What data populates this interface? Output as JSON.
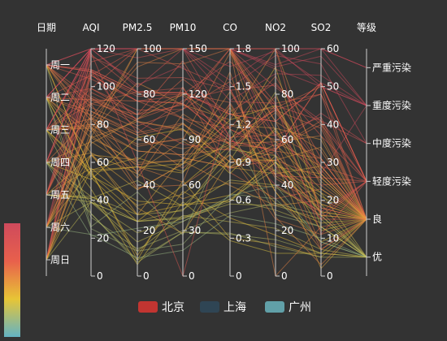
{
  "chart_data": {
    "type": "parallel",
    "background": "#333333",
    "axes": [
      {
        "name": "日期",
        "type": "category",
        "categories": [
          "周一",
          "周二",
          "周三",
          "周四",
          "周五",
          "周六",
          "周日"
        ],
        "inverse": true,
        "ticks": [
          "周一",
          "周二",
          "周三",
          "周四",
          "周五",
          "周六",
          "周日"
        ]
      },
      {
        "name": "AQI",
        "type": "value",
        "min": 0,
        "max": 120,
        "ticks": [
          "0",
          "20",
          "40",
          "60",
          "80",
          "100",
          "120"
        ]
      },
      {
        "name": "PM2.5",
        "type": "value",
        "min": 0,
        "max": 100,
        "ticks": [
          "0",
          "20",
          "40",
          "60",
          "80",
          "100"
        ]
      },
      {
        "name": "PM10",
        "type": "value",
        "min": 0,
        "max": 150,
        "ticks": [
          "0",
          "30",
          "60",
          "90",
          "120",
          "150"
        ]
      },
      {
        "name": "CO",
        "type": "value",
        "min": 0,
        "max": 1.8,
        "ticks": [
          "0",
          "0.3",
          "0.6",
          "0.9",
          "1.2",
          "1.5",
          "1.8"
        ]
      },
      {
        "name": "NO2",
        "type": "value",
        "min": 0,
        "max": 100,
        "ticks": [
          "0",
          "20",
          "40",
          "60",
          "80",
          "100"
        ]
      },
      {
        "name": "SO2",
        "type": "value",
        "min": 0,
        "max": 60,
        "ticks": [
          "0",
          "10",
          "20",
          "30",
          "40",
          "50",
          "60"
        ]
      },
      {
        "name": "等级",
        "type": "category",
        "categories": [
          "优",
          "良",
          "轻度污染",
          "中度污染",
          "重度污染",
          "严重污染"
        ],
        "ticks": [
          "优",
          "良",
          "轻度污染",
          "中度污染",
          "重度污染",
          "严重污染"
        ]
      }
    ],
    "visual_map": {
      "dimension": "AQI",
      "min": 0,
      "max": 150,
      "colors": [
        "#63b3c4",
        "#e7c536",
        "#e8604c",
        "#cf4a5c"
      ]
    },
    "series": [
      {
        "name": "北京",
        "legend_color": "#c23531",
        "rows": [
          [
            0,
            55,
            9,
            56,
            0.46,
            18,
            6,
            1
          ],
          [
            1,
            25,
            11,
            21,
            0.65,
            34,
            9,
            0
          ],
          [
            2,
            56,
            7,
            63,
            0.3,
            14,
            5,
            1
          ],
          [
            3,
            33,
            7,
            29,
            0.33,
            16,
            6,
            0
          ],
          [
            4,
            42,
            24,
            44,
            0.76,
            40,
            16,
            0
          ],
          [
            5,
            82,
            58,
            90,
            1.77,
            68,
            33,
            1
          ],
          [
            6,
            74,
            49,
            77,
            1.46,
            48,
            27,
            1
          ],
          [
            0,
            78,
            55,
            80,
            1.29,
            59,
            29,
            1
          ],
          [
            1,
            267,
            216,
            280,
            4.8,
            108,
            64,
            5
          ],
          [
            2,
            185,
            127,
            216,
            2.52,
            61,
            27,
            4
          ],
          [
            3,
            39,
            19,
            38,
            0.57,
            31,
            15,
            0
          ],
          [
            4,
            41,
            11,
            40,
            0.43,
            21,
            7,
            0
          ],
          [
            5,
            64,
            38,
            74,
            1.04,
            46,
            22,
            1
          ],
          [
            6,
            108,
            79,
            120,
            1.7,
            75,
            41,
            2
          ],
          [
            0,
            108,
            63,
            116,
            1.48,
            44,
            26,
            2
          ],
          [
            1,
            33,
            6,
            29,
            0.34,
            13,
            5,
            0
          ],
          [
            2,
            94,
            66,
            110,
            1.54,
            62,
            31,
            1
          ],
          [
            3,
            186,
            142,
            192,
            3.88,
            93,
            79,
            4
          ],
          [
            4,
            57,
            31,
            54,
            0.96,
            32,
            14,
            1
          ],
          [
            5,
            22,
            8,
            17,
            0.48,
            23,
            10,
            0
          ],
          [
            6,
            39,
            15,
            36,
            0.61,
            29,
            13,
            0
          ],
          [
            0,
            94,
            69,
            114,
            2.08,
            73,
            39,
            1
          ],
          [
            1,
            99,
            73,
            110,
            2.43,
            76,
            48,
            1
          ],
          [
            2,
            31,
            12,
            30,
            0.5,
            32,
            16,
            0
          ],
          [
            3,
            42,
            27,
            43,
            1,
            53,
            22,
            0
          ],
          [
            4,
            154,
            117,
            157,
            3.05,
            92,
            58,
            4
          ],
          [
            5,
            234,
            185,
            230,
            4.09,
            123,
            69,
            5
          ],
          [
            6,
            160,
            120,
            186,
            2.77,
            91,
            50,
            4
          ],
          [
            0,
            134,
            96,
            165,
            2.76,
            83,
            41,
            3
          ],
          [
            1,
            52,
            24,
            60,
            1.03,
            50,
            21,
            1
          ],
          [
            2,
            46,
            5,
            49,
            0.28,
            10,
            6,
            0
          ]
        ]
      },
      {
        "name": "上海",
        "legend_color": "#2f4554",
        "rows": [
          [
            0,
            91,
            45,
            125,
            0.82,
            34,
            23,
            1
          ],
          [
            1,
            65,
            27,
            78,
            0.86,
            45,
            29,
            1
          ],
          [
            2,
            83,
            60,
            84,
            1.09,
            73,
            27,
            1
          ],
          [
            3,
            109,
            81,
            121,
            1.28,
            68,
            51,
            2
          ],
          [
            4,
            106,
            77,
            114,
            1.07,
            55,
            51,
            2
          ],
          [
            5,
            109,
            81,
            121,
            1.28,
            68,
            51,
            2
          ],
          [
            6,
            106,
            77,
            114,
            1.07,
            55,
            51,
            2
          ],
          [
            0,
            89,
            65,
            78,
            0.86,
            51,
            26,
            1
          ],
          [
            1,
            53,
            33,
            47,
            0.64,
            50,
            17,
            1
          ],
          [
            2,
            80,
            55,
            80,
            1.01,
            75,
            24,
            1
          ],
          [
            3,
            117,
            81,
            124,
            1.03,
            45,
            24,
            2
          ],
          [
            4,
            99,
            71,
            142,
            1.1,
            62,
            42,
            1
          ],
          [
            5,
            95,
            69,
            130,
            1.28,
            74,
            50,
            1
          ],
          [
            6,
            116,
            87,
            131,
            1.47,
            84,
            40,
            2
          ],
          [
            0,
            108,
            80,
            121,
            1.3,
            85,
            37,
            2
          ],
          [
            1,
            134,
            83,
            167,
            1.16,
            57,
            43,
            3
          ],
          [
            2,
            79,
            43,
            107,
            1.05,
            59,
            37,
            1
          ],
          [
            3,
            71,
            46,
            89,
            0.86,
            64,
            25,
            1
          ],
          [
            4,
            97,
            71,
            113,
            1.17,
            88,
            31,
            1
          ],
          [
            5,
            84,
            57,
            91,
            0.85,
            55,
            31,
            1
          ],
          [
            6,
            87,
            63,
            101,
            0.9,
            56,
            41,
            1
          ],
          [
            0,
            104,
            77,
            119,
            1.09,
            73,
            48,
            2
          ],
          [
            1,
            87,
            62,
            100,
            1,
            72,
            28,
            1
          ],
          [
            2,
            168,
            128,
            172,
            1.49,
            97,
            56,
            3
          ],
          [
            3,
            65,
            45,
            51,
            0.74,
            39,
            17,
            1
          ],
          [
            4,
            39,
            24,
            38,
            0.61,
            47,
            17,
            0
          ],
          [
            5,
            39,
            24,
            39,
            0.59,
            50,
            19,
            0
          ],
          [
            6,
            93,
            68,
            96,
            1.05,
            79,
            29,
            1
          ],
          [
            0,
            188,
            143,
            197,
            1.66,
            99,
            51,
            4
          ],
          [
            1,
            174,
            131,
            174,
            1.55,
            108,
            50,
            4
          ],
          [
            2,
            187,
            143,
            201,
            1.39,
            89,
            53,
            4
          ]
        ]
      },
      {
        "name": "广州",
        "legend_color": "#61a0a8",
        "rows": [
          [
            0,
            26,
            37,
            27,
            1.163,
            27,
            13,
            0
          ],
          [
            1,
            85,
            62,
            71,
            1.195,
            60,
            8,
            1
          ],
          [
            2,
            78,
            38,
            74,
            1.363,
            37,
            7,
            1
          ],
          [
            3,
            21,
            21,
            36,
            0.634,
            40,
            9,
            0
          ],
          [
            4,
            41,
            42,
            46,
            0.915,
            81,
            13,
            0
          ],
          [
            5,
            56,
            52,
            69,
            1.067,
            92,
            16,
            1
          ],
          [
            6,
            64,
            30,
            28,
            0.924,
            51,
            2,
            1
          ],
          [
            0,
            55,
            48,
            74,
            1.236,
            75,
            26,
            1
          ],
          [
            1,
            76,
            85,
            113,
            1.237,
            114,
            27,
            1
          ],
          [
            2,
            91,
            81,
            104,
            1.041,
            56,
            40,
            1
          ],
          [
            3,
            84,
            39,
            60,
            0.964,
            25,
            11,
            1
          ],
          [
            4,
            64,
            51,
            101,
            0.862,
            58,
            23,
            1
          ],
          [
            5,
            70,
            69,
            120,
            1.198,
            65,
            36,
            1
          ],
          [
            6,
            77,
            105,
            178,
            2.549,
            64,
            16,
            1
          ],
          [
            0,
            109,
            68,
            87,
            0.996,
            74,
            29,
            2
          ],
          [
            1,
            73,
            68,
            97,
            0.905,
            51,
            34,
            1
          ],
          [
            2,
            54,
            27,
            47,
            0.592,
            53,
            12,
            1
          ],
          [
            3,
            51,
            61,
            97,
            0.811,
            65,
            19,
            1
          ],
          [
            4,
            91,
            71,
            121,
            1.374,
            43,
            18,
            1
          ],
          [
            5,
            73,
            102,
            182,
            2.787,
            44,
            19,
            1
          ],
          [
            6,
            73,
            50,
            76,
            0.717,
            31,
            20,
            1
          ],
          [
            0,
            84,
            94,
            140,
            2.238,
            68,
            18,
            1
          ],
          [
            1,
            93,
            77,
            104,
            1.165,
            53,
            7,
            1
          ],
          [
            2,
            99,
            130,
            227,
            3.97,
            55,
            15,
            1
          ],
          [
            3,
            146,
            84,
            139,
            1.094,
            40,
            17,
            2
          ],
          [
            4,
            113,
            108,
            137,
            1.481,
            48,
            15,
            2
          ],
          [
            5,
            81,
            48,
            62,
            1.619,
            26,
            3,
            1
          ],
          [
            6,
            56,
            48,
            68,
            1.336,
            37,
            9,
            1
          ],
          [
            0,
            82,
            92,
            174,
            3.29,
            0,
            13,
            1
          ],
          [
            1,
            106,
            116,
            188,
            3.628,
            101,
            16,
            2
          ],
          [
            2,
            118,
            50,
            0,
            1.383,
            76,
            11,
            2
          ]
        ]
      }
    ]
  }
}
